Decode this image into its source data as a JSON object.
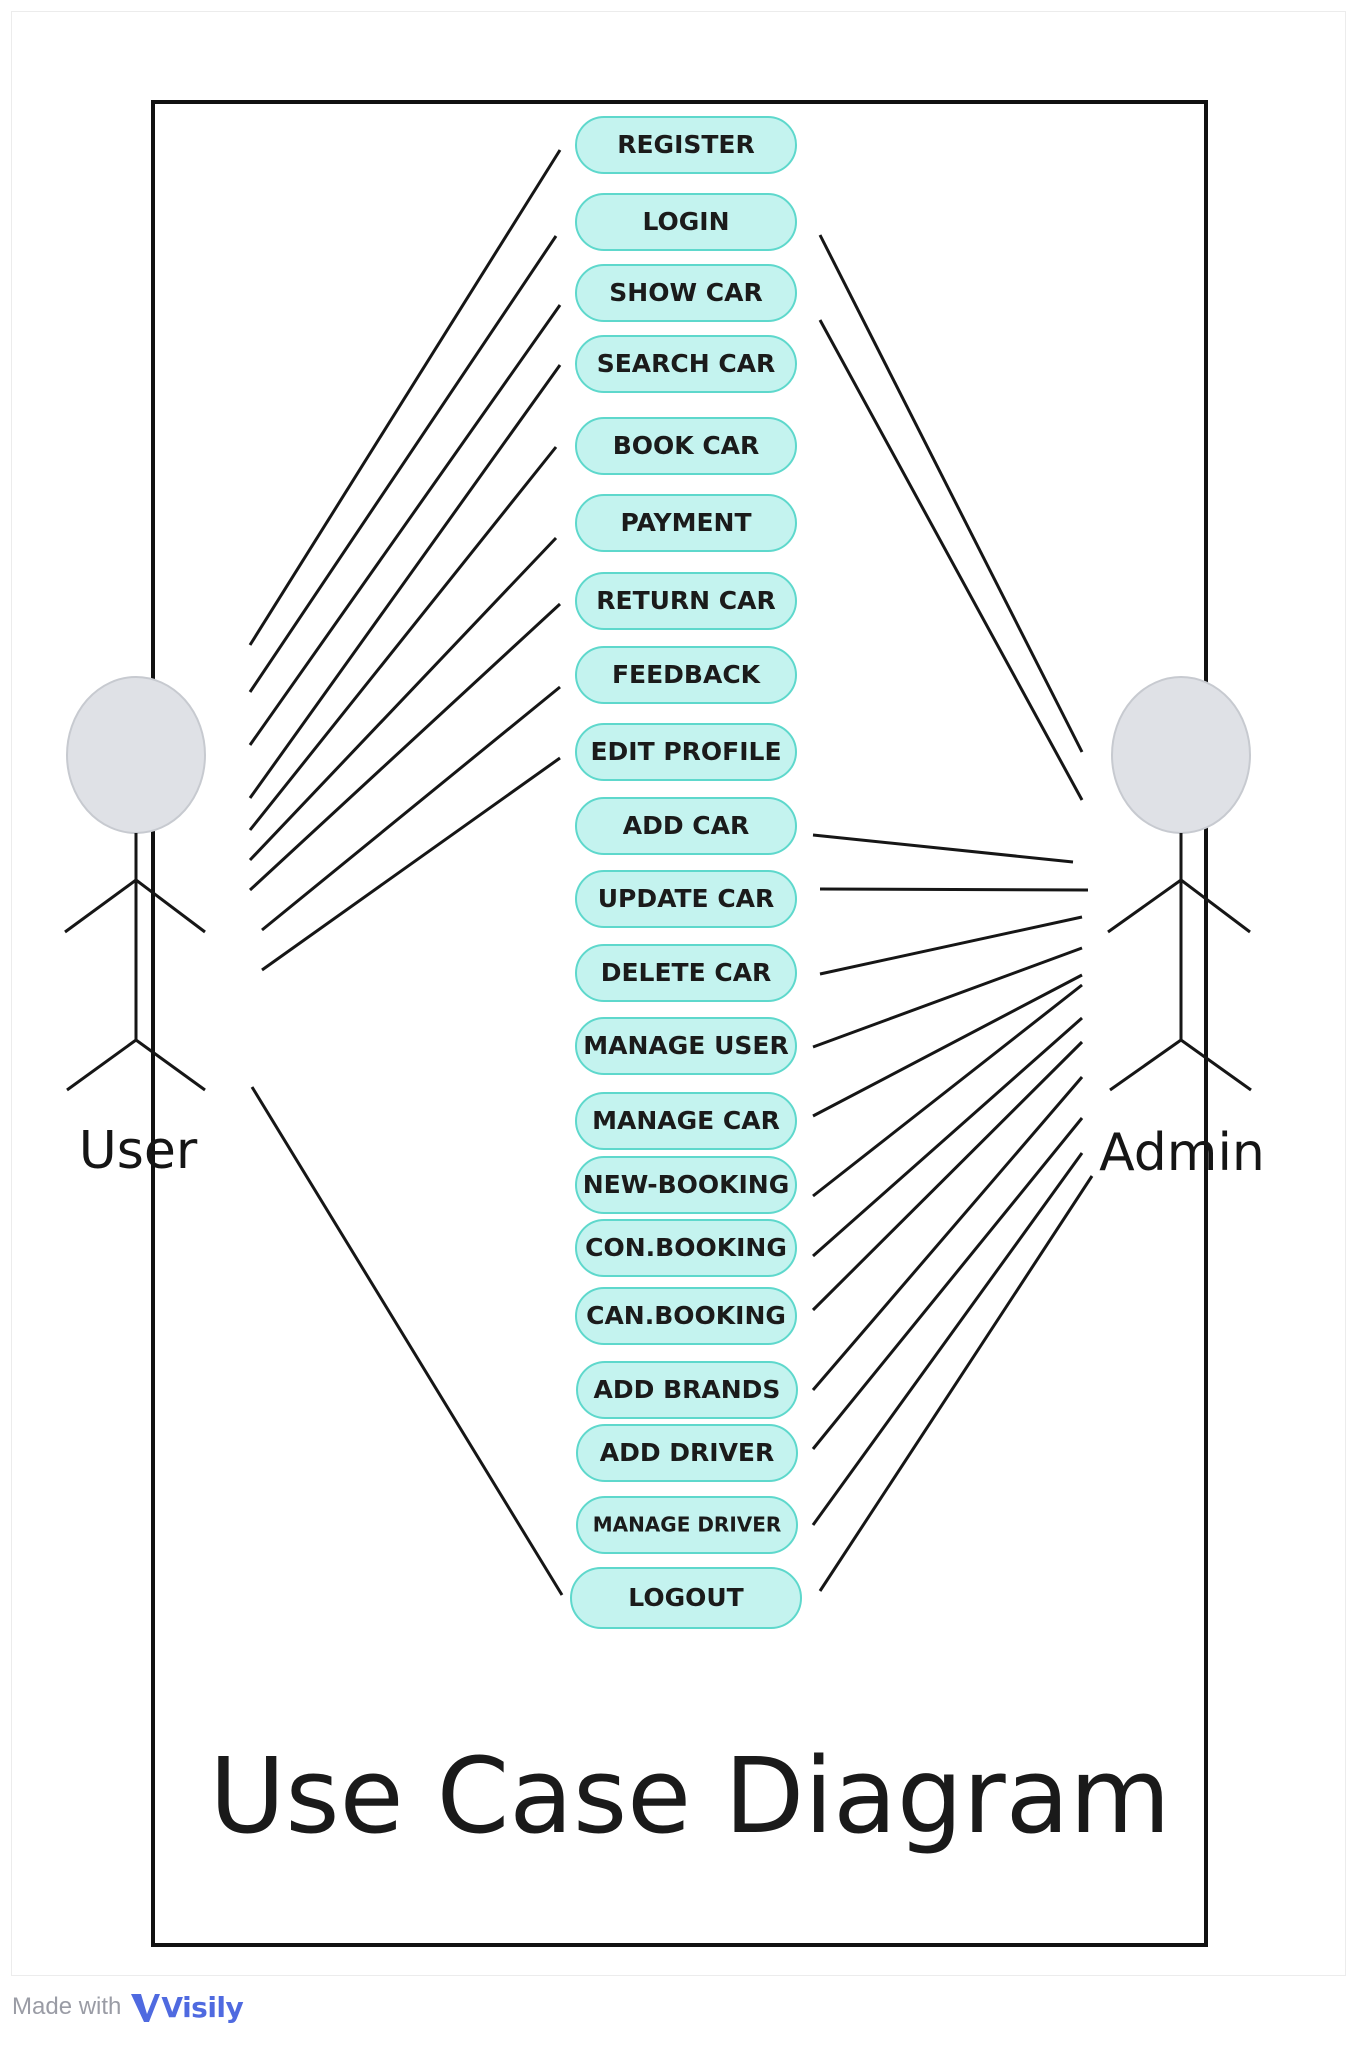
{
  "diagram": {
    "title": "Use Case Diagram",
    "actors": [
      {
        "id": "user",
        "label": "User"
      },
      {
        "id": "admin",
        "label": "Admin"
      }
    ],
    "use_cases": [
      {
        "id": "register",
        "label": "REGISTER"
      },
      {
        "id": "login",
        "label": "LOGIN"
      },
      {
        "id": "show_car",
        "label": "SHOW CAR"
      },
      {
        "id": "search_car",
        "label": "SEARCH CAR"
      },
      {
        "id": "book_car",
        "label": "BOOK CAR"
      },
      {
        "id": "payment",
        "label": "PAYMENT"
      },
      {
        "id": "return_car",
        "label": "RETURN CAR"
      },
      {
        "id": "feedback",
        "label": "FEEDBACK"
      },
      {
        "id": "edit_profile",
        "label": "EDIT PROFILE"
      },
      {
        "id": "add_car",
        "label": "ADD CAR"
      },
      {
        "id": "update_car",
        "label": "UPDATE CAR"
      },
      {
        "id": "delete_car",
        "label": "DELETE CAR"
      },
      {
        "id": "manage_user",
        "label": "MANAGE USER"
      },
      {
        "id": "manage_car",
        "label": "MANAGE CAR"
      },
      {
        "id": "new_booking",
        "label": "NEW-BOOKING"
      },
      {
        "id": "con_booking",
        "label": "CON.BOOKING"
      },
      {
        "id": "can_booking",
        "label": "CAN.BOOKING"
      },
      {
        "id": "add_brands",
        "label": "ADD BRANDS"
      },
      {
        "id": "add_driver",
        "label": "ADD DRIVER"
      },
      {
        "id": "manage_driver",
        "label": "MANAGE DRIVER"
      },
      {
        "id": "logout",
        "label": "LOGOUT"
      }
    ],
    "associations": {
      "user": [
        "register",
        "login",
        "show_car",
        "search_car",
        "book_car",
        "payment",
        "return_car",
        "feedback",
        "edit_profile",
        "logout"
      ],
      "admin": [
        "login",
        "show_car",
        "add_car",
        "update_car",
        "delete_car",
        "manage_user",
        "manage_car",
        "new_booking",
        "con_booking",
        "can_booking",
        "add_brands",
        "add_driver",
        "manage_driver",
        "logout"
      ]
    },
    "colors": {
      "use_case_fill": "#c4f3ef",
      "use_case_stroke": "#5ed8cc",
      "actor_head": "#dfe1e6",
      "line": "#161616"
    }
  },
  "footer": {
    "made_with": "Made with",
    "brand": "Visily"
  }
}
